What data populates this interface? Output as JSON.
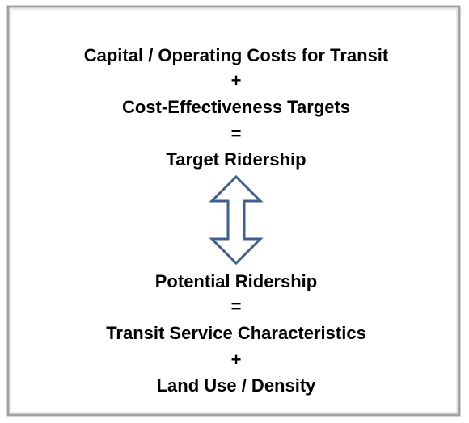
{
  "top": [
    "Capital / Operating Costs for Transit",
    "+",
    "Cost-Effectiveness Targets",
    "=",
    "Target Ridership"
  ],
  "bottom": [
    "Potential Ridership",
    "=",
    "Transit Service Characteristics",
    "+",
    "Land Use / Density"
  ]
}
